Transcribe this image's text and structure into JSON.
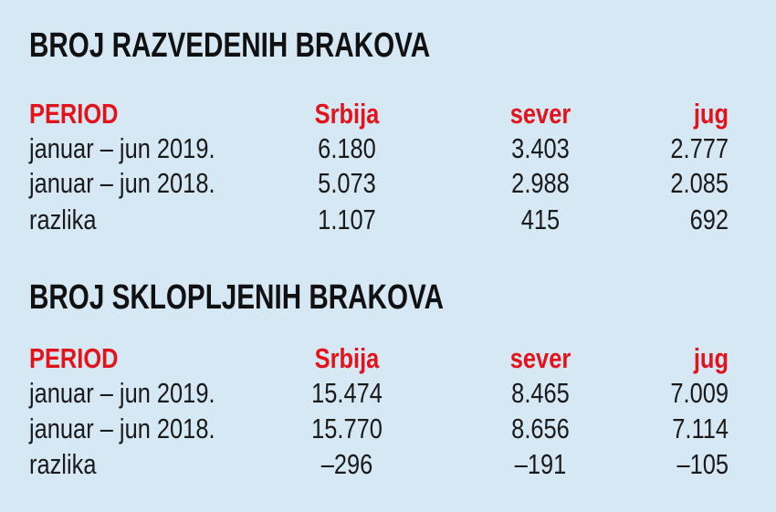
{
  "tables": [
    {
      "title": "BROJ RAZVEDENIH BRAKOVA",
      "columns": [
        "PERIOD",
        "Srbija",
        "sever",
        "jug"
      ],
      "rows": [
        [
          "januar – jun 2019.",
          "6.180",
          "3.403",
          "2.777"
        ],
        [
          "januar – jun 2018.",
          "5.073",
          "2.988",
          "2.085"
        ],
        [
          "razlika",
          "1.107",
          "415",
          "692"
        ]
      ]
    },
    {
      "title": "BROJ SKLOPLJENIH BRAKOVA",
      "columns": [
        "PERIOD",
        "Srbija",
        "sever",
        "jug"
      ],
      "rows": [
        [
          "januar – jun 2019.",
          "15.474",
          "8.465",
          "7.009"
        ],
        [
          "januar – jun 2018.",
          "15.770",
          "8.656",
          "7.114"
        ],
        [
          "razlika",
          "–296",
          "–191",
          "–105"
        ]
      ]
    }
  ]
}
